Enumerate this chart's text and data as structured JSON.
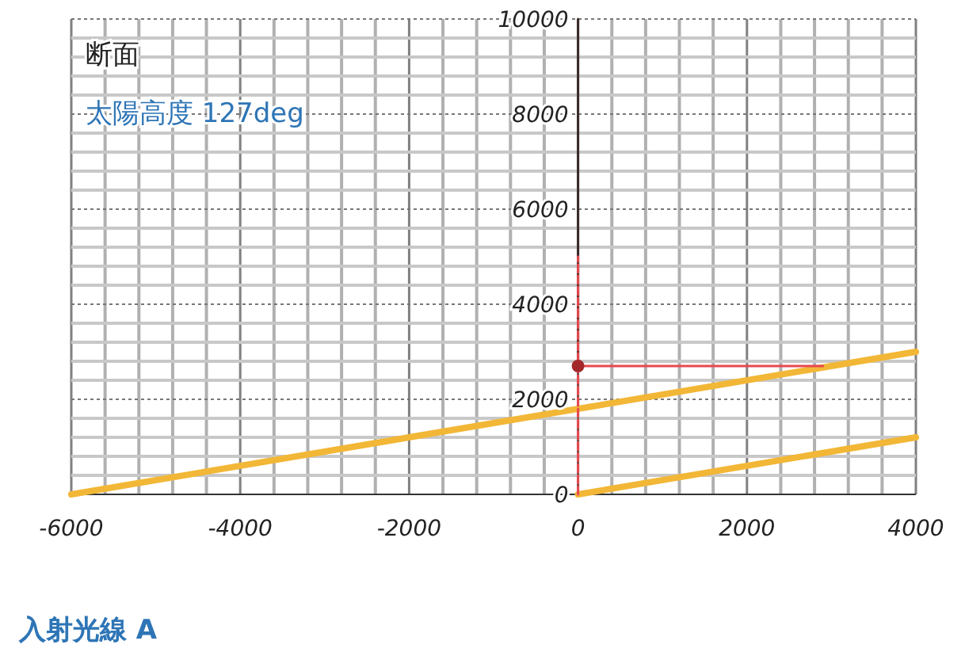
{
  "chart_data": {
    "type": "line",
    "title": "断面",
    "subtitle": "太陽高度 127deg",
    "annotations": [
      "入射光線 A"
    ],
    "xlim": [
      -6000,
      4000
    ],
    "xticks": [
      -6000,
      -4000,
      -2000,
      0,
      2000,
      4000
    ],
    "ylim": [
      0,
      10000
    ],
    "yticks": [
      0,
      2000,
      4000,
      6000,
      8000,
      10000
    ],
    "grid": true,
    "series": [
      {
        "color": "#f2b736",
        "x": [
          -6000,
          4000
        ],
        "values": [
          0,
          3000
        ]
      },
      {
        "color": "#f2b736",
        "x": [
          0,
          4000
        ],
        "values": [
          0,
          1200
        ]
      },
      {
        "color": "#3a2a2a",
        "x": [
          0,
          0
        ],
        "values": [
          2700,
          10000
        ]
      },
      {
        "color": "#e8484f",
        "x": [
          0,
          0
        ],
        "values": [
          0,
          5000
        ],
        "line_style": "dashed"
      },
      {
        "color": "#e8484f",
        "x": [
          0,
          2900
        ],
        "values": [
          2700,
          2700
        ]
      },
      {
        "type": "scatter",
        "color": "#a3282c",
        "x": [
          0
        ],
        "values": [
          2700
        ],
        "marker": "circle"
      }
    ]
  }
}
